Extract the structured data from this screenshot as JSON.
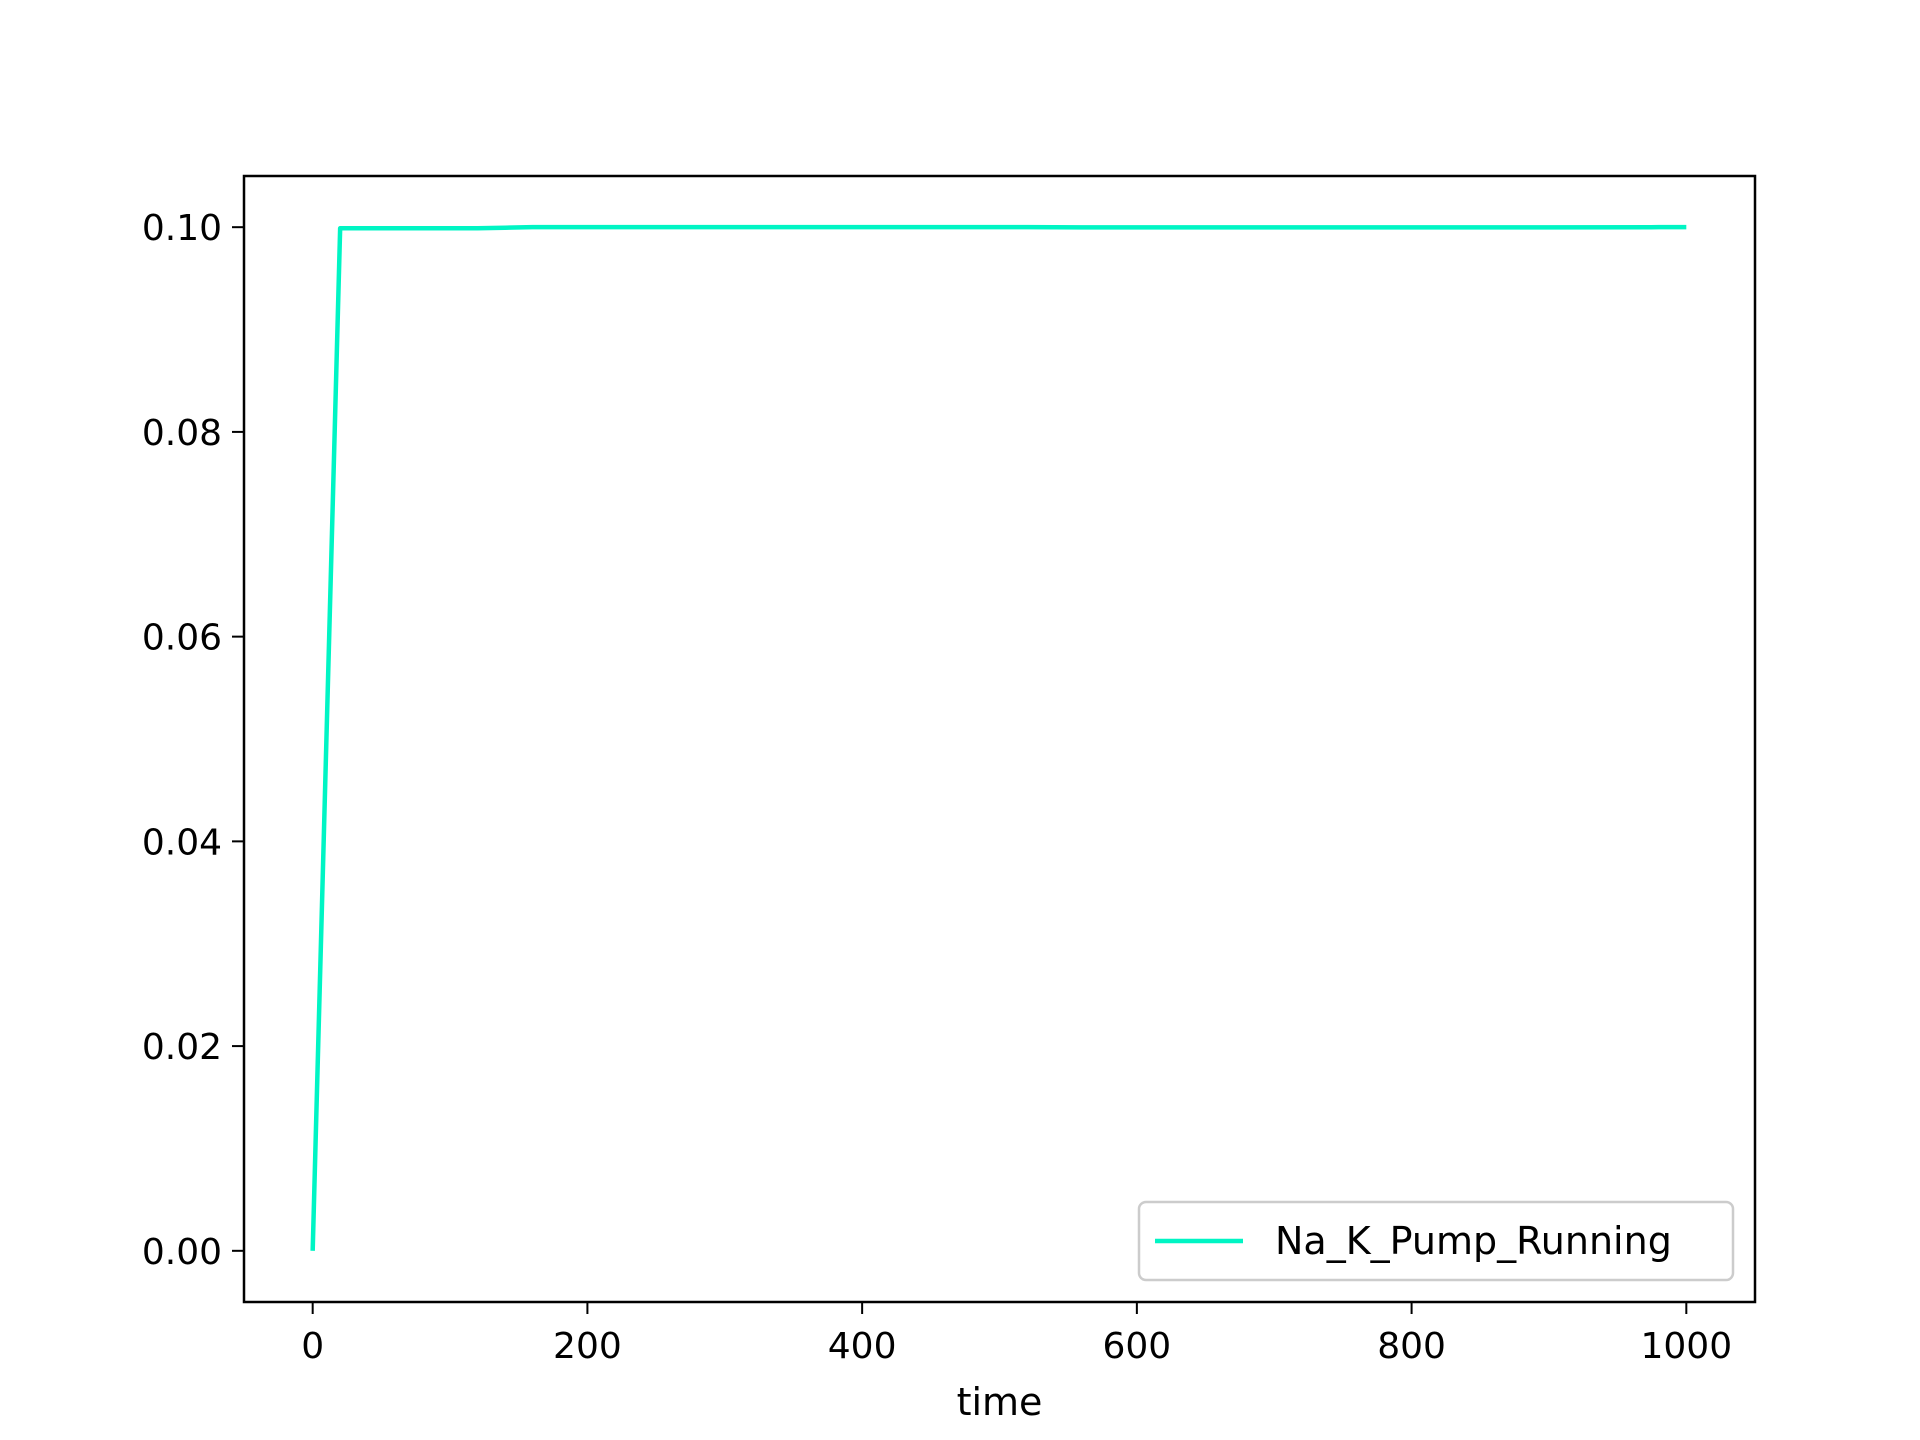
{
  "chart_data": {
    "type": "line",
    "title": "",
    "xlabel": "time",
    "ylabel": "",
    "xlim": [
      -50,
      1050
    ],
    "ylim": [
      -0.005,
      0.105
    ],
    "xticks": [
      0,
      200,
      400,
      600,
      800,
      1000
    ],
    "xtick_labels": [
      "0",
      "200",
      "400",
      "600",
      "800",
      "1000"
    ],
    "yticks": [
      0.0,
      0.02,
      0.04,
      0.06,
      0.08,
      0.1
    ],
    "ytick_labels": [
      "0.00",
      "0.02",
      "0.04",
      "0.06",
      "0.08",
      "0.10"
    ],
    "grid": false,
    "legend_position": "lower-right",
    "series": [
      {
        "name": "Na_K_Pump_Running",
        "color": "#00f5c4",
        "x": [
          0,
          20,
          60,
          120,
          140,
          160,
          200,
          300,
          400,
          500,
          520,
          560,
          600,
          700,
          800,
          900,
          980,
          1000
        ],
        "y": [
          0.0,
          0.0999,
          0.0999,
          0.0999,
          0.09995,
          0.1,
          0.1,
          0.1,
          0.1,
          0.1,
          0.1,
          0.09998,
          0.09998,
          0.09998,
          0.09998,
          0.09998,
          0.1,
          0.1
        ]
      }
    ]
  }
}
